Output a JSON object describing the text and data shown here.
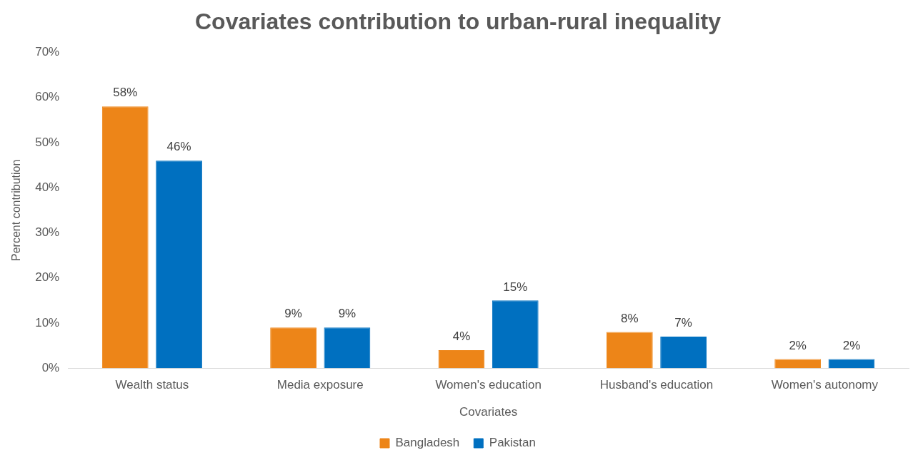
{
  "chart_data": {
    "type": "bar",
    "title": "Covariates contribution to urban-rural inequality",
    "xlabel": "Covariates",
    "ylabel": "Percent contribution",
    "categories": [
      "Wealth status",
      "Media exposure",
      "Women's education",
      "Husband's education",
      "Women's autonomy"
    ],
    "series": [
      {
        "name": "Bangladesh",
        "color": "#ed8518",
        "values": [
          58,
          9,
          4,
          8,
          2
        ],
        "value_labels": [
          "58%",
          "9%",
          "4%",
          "8%",
          "2%"
        ]
      },
      {
        "name": "Pakistan",
        "color": "#0070c0",
        "values": [
          46,
          9,
          15,
          7,
          2
        ],
        "value_labels": [
          "46%",
          "9%",
          "15%",
          "7%",
          "2%"
        ]
      }
    ],
    "ylim": [
      0,
      70
    ],
    "yticks": [
      {
        "value": 0,
        "label": "0%"
      },
      {
        "value": 10,
        "label": "10%"
      },
      {
        "value": 20,
        "label": "20%"
      },
      {
        "value": 30,
        "label": "30%"
      },
      {
        "value": 40,
        "label": "40%"
      },
      {
        "value": 50,
        "label": "50%"
      },
      {
        "value": 60,
        "label": "60%"
      },
      {
        "value": 70,
        "label": "70%"
      }
    ],
    "grid": false,
    "legend": "bottom"
  }
}
